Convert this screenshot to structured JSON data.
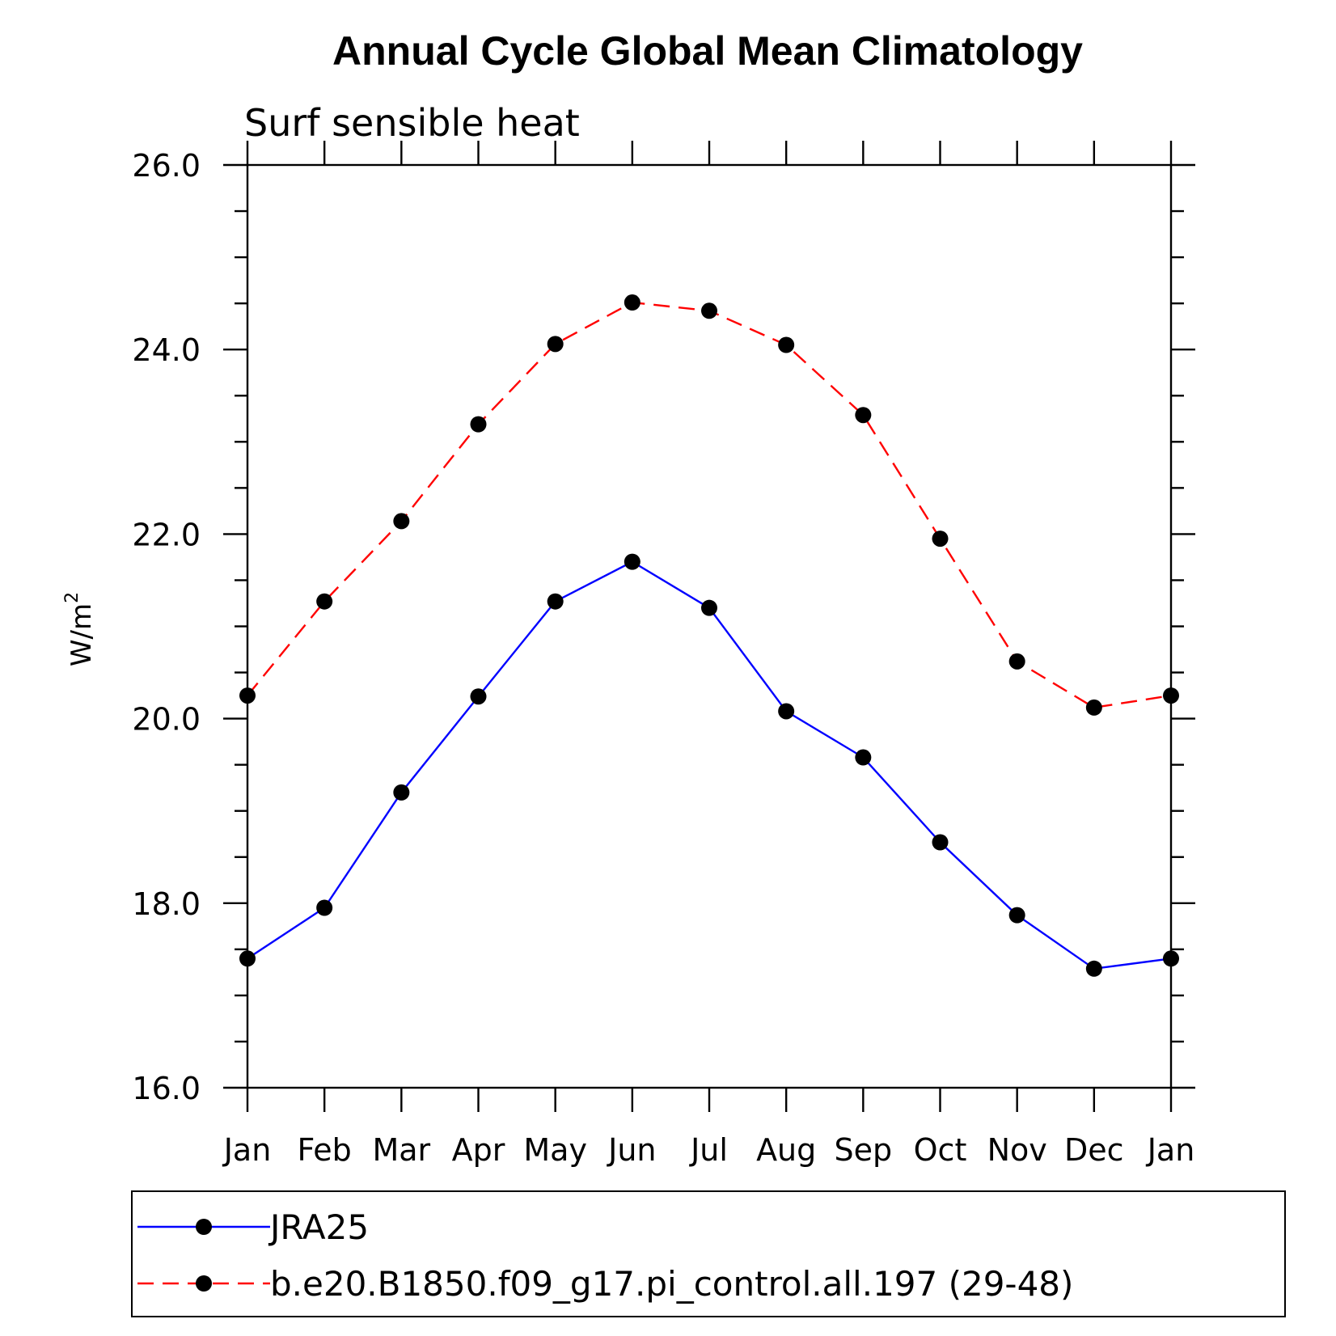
{
  "chart_data": {
    "type": "line",
    "title": "Annual Cycle Global Mean Climatology",
    "subtitle": "Surf sensible heat",
    "ylabel": "W/m",
    "ylabel_sup": "2",
    "xlabel": "",
    "categories": [
      "Jan",
      "Feb",
      "Mar",
      "Apr",
      "May",
      "Jun",
      "Jul",
      "Aug",
      "Sep",
      "Oct",
      "Nov",
      "Dec",
      "Jan"
    ],
    "ylim": [
      16.0,
      26.0
    ],
    "yticks": [
      "16.0",
      "18.0",
      "20.0",
      "22.0",
      "24.0",
      "26.0"
    ],
    "ytick_values": [
      16,
      18,
      20,
      22,
      24,
      26
    ],
    "yminor_step": 0.5,
    "grid": false,
    "legend_position": "bottom",
    "series": [
      {
        "name": "JRA25",
        "color": "#0000ff",
        "style": "solid",
        "marker": "filled-circle",
        "values": [
          17.4,
          17.95,
          19.2,
          20.24,
          21.27,
          21.7,
          21.2,
          20.08,
          19.58,
          18.66,
          17.87,
          17.29,
          17.4
        ]
      },
      {
        "name": "b.e20.B1850.f09_g17.pi_control.all.197 (29-48)",
        "color": "#ff0000",
        "style": "dashed",
        "marker": "filled-circle",
        "values": [
          20.25,
          21.27,
          22.14,
          23.19,
          24.06,
          24.51,
          24.42,
          24.05,
          23.29,
          21.95,
          20.62,
          20.12,
          20.25
        ]
      }
    ]
  }
}
